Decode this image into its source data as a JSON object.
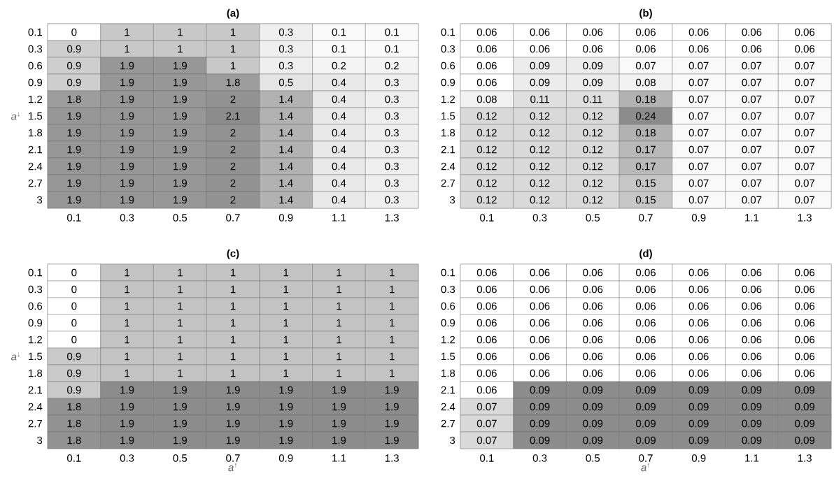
{
  "chart_data": [
    {
      "type": "heatmap",
      "title": "(a)",
      "ylabel": "*a*$^{↓}$",
      "data_labels": true,
      "categories": [
        "0.1",
        "0.3",
        "0.5",
        "0.7",
        "0.9",
        "1.1",
        "1.3"
      ],
      "y_categories": [
        "0.1",
        "0.3",
        "0.6",
        "0.9",
        "1.2",
        "1.5",
        "1.8",
        "2.1",
        "2.4",
        "2.7",
        "3"
      ],
      "cells": [
        [
          0,
          1,
          1,
          1,
          0.3,
          0.1,
          0.1
        ],
        [
          0.9,
          1,
          1,
          1,
          0.3,
          0.1,
          0.1
        ],
        [
          0.9,
          1.9,
          1.9,
          1,
          0.3,
          0.2,
          0.2
        ],
        [
          0.9,
          1.9,
          1.9,
          1.8,
          0.5,
          0.4,
          0.3
        ],
        [
          1.8,
          1.9,
          1.9,
          2,
          1.4,
          0.4,
          0.3
        ],
        [
          1.9,
          1.9,
          1.9,
          2.1,
          1.4,
          0.4,
          0.3
        ],
        [
          1.9,
          1.9,
          1.9,
          2,
          1.4,
          0.4,
          0.3
        ],
        [
          1.9,
          1.9,
          1.9,
          2,
          1.4,
          0.4,
          0.3
        ],
        [
          1.9,
          1.9,
          1.9,
          2,
          1.4,
          0.4,
          0.3
        ],
        [
          1.9,
          1.9,
          1.9,
          2,
          1.4,
          0.4,
          0.3
        ],
        [
          1.9,
          1.9,
          1.9,
          2,
          1.4,
          0.4,
          0.3
        ]
      ]
    },
    {
      "type": "heatmap",
      "title": "(b)",
      "data_labels": true,
      "categories": [
        "0.1",
        "0.3",
        "0.5",
        "0.7",
        "0.9",
        "1.1",
        "1.3"
      ],
      "y_categories": [
        "0.1",
        "0.3",
        "0.6",
        "0.9",
        "1.2",
        "1.5",
        "1.8",
        "2.1",
        "2.4",
        "2.7",
        "3"
      ],
      "cells": [
        [
          0.06,
          0.06,
          0.06,
          0.06,
          0.06,
          0.06,
          0.06
        ],
        [
          0.06,
          0.06,
          0.06,
          0.06,
          0.06,
          0.06,
          0.06
        ],
        [
          0.06,
          0.09,
          0.09,
          0.07,
          0.07,
          0.07,
          0.07
        ],
        [
          0.06,
          0.09,
          0.09,
          0.08,
          0.07,
          0.07,
          0.07
        ],
        [
          0.08,
          0.11,
          0.11,
          0.18,
          0.07,
          0.07,
          0.07
        ],
        [
          0.12,
          0.12,
          0.12,
          0.24,
          0.07,
          0.07,
          0.07
        ],
        [
          0.12,
          0.12,
          0.12,
          0.18,
          0.07,
          0.07,
          0.07
        ],
        [
          0.12,
          0.12,
          0.12,
          0.17,
          0.07,
          0.07,
          0.07
        ],
        [
          0.12,
          0.12,
          0.12,
          0.17,
          0.07,
          0.07,
          0.07
        ],
        [
          0.12,
          0.12,
          0.12,
          0.15,
          0.07,
          0.07,
          0.07
        ],
        [
          0.12,
          0.12,
          0.12,
          0.15,
          0.07,
          0.07,
          0.07
        ]
      ]
    },
    {
      "type": "heatmap",
      "title": "(c)",
      "xlabel": "*a*$^{↑}$",
      "ylabel": "*a*$^{↓}$",
      "data_labels": true,
      "categories": [
        "0.1",
        "0.3",
        "0.5",
        "0.7",
        "0.9",
        "1.1",
        "1.3"
      ],
      "y_categories": [
        "0.1",
        "0.3",
        "0.6",
        "0.9",
        "1.2",
        "1.5",
        "1.8",
        "2.1",
        "2.4",
        "2.7",
        "3"
      ],
      "cells": [
        [
          0,
          1,
          1,
          1,
          1,
          1,
          1
        ],
        [
          0,
          1,
          1,
          1,
          1,
          1,
          1
        ],
        [
          0,
          1,
          1,
          1,
          1,
          1,
          1
        ],
        [
          0,
          1,
          1,
          1,
          1,
          1,
          1
        ],
        [
          0,
          1,
          1,
          1,
          1,
          1,
          1
        ],
        [
          0.9,
          1,
          1,
          1,
          1,
          1,
          1
        ],
        [
          0.9,
          1,
          1,
          1,
          1,
          1,
          1
        ],
        [
          0.9,
          1.9,
          1.9,
          1.9,
          1.9,
          1.9,
          1.9
        ],
        [
          1.8,
          1.9,
          1.9,
          1.9,
          1.9,
          1.9,
          1.9
        ],
        [
          1.8,
          1.9,
          1.9,
          1.9,
          1.9,
          1.9,
          1.9
        ],
        [
          1.8,
          1.9,
          1.9,
          1.9,
          1.9,
          1.9,
          1.9
        ]
      ]
    },
    {
      "type": "heatmap",
      "title": "(d)",
      "xlabel": "*a*$^{↑}$",
      "data_labels": true,
      "categories": [
        "0.1",
        "0.3",
        "0.5",
        "0.7",
        "0.9",
        "1.1",
        "1.3"
      ],
      "y_categories": [
        "0.1",
        "0.3",
        "0.6",
        "0.9",
        "1.2",
        "1.5",
        "1.8",
        "2.1",
        "2.4",
        "2.7",
        "3"
      ],
      "cells": [
        [
          0.06,
          0.06,
          0.06,
          0.06,
          0.06,
          0.06,
          0.06
        ],
        [
          0.06,
          0.06,
          0.06,
          0.06,
          0.06,
          0.06,
          0.06
        ],
        [
          0.06,
          0.06,
          0.06,
          0.06,
          0.06,
          0.06,
          0.06
        ],
        [
          0.06,
          0.06,
          0.06,
          0.06,
          0.06,
          0.06,
          0.06
        ],
        [
          0.06,
          0.06,
          0.06,
          0.06,
          0.06,
          0.06,
          0.06
        ],
        [
          0.06,
          0.06,
          0.06,
          0.06,
          0.06,
          0.06,
          0.06
        ],
        [
          0.06,
          0.06,
          0.06,
          0.06,
          0.06,
          0.06,
          0.06
        ],
        [
          0.06,
          0.09,
          0.09,
          0.09,
          0.09,
          0.09,
          0.09
        ],
        [
          0.07,
          0.09,
          0.09,
          0.09,
          0.09,
          0.09,
          0.09
        ],
        [
          0.07,
          0.09,
          0.09,
          0.09,
          0.09,
          0.09,
          0.09
        ],
        [
          0.07,
          0.09,
          0.09,
          0.09,
          0.09,
          0.09,
          0.09
        ]
      ]
    }
  ]
}
